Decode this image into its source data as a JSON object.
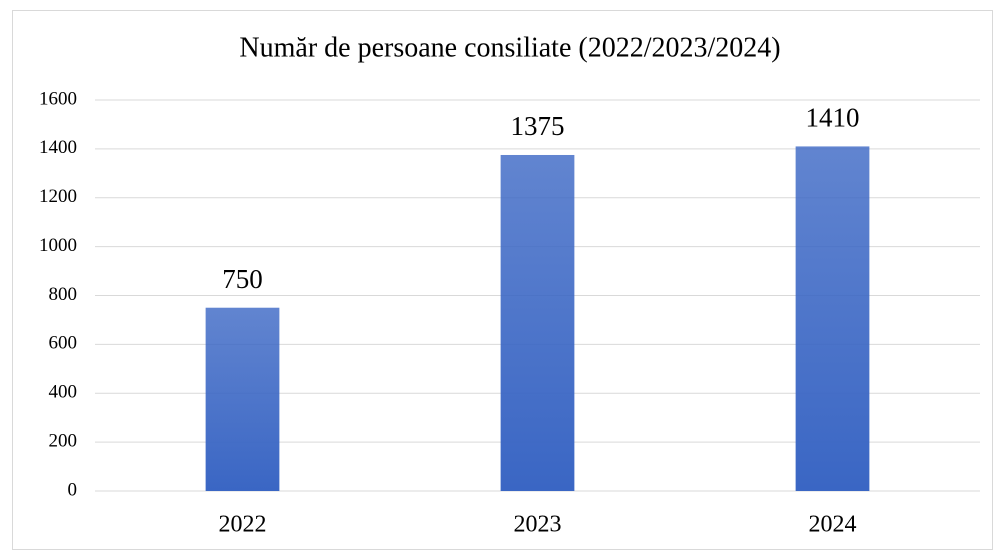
{
  "chart_data": {
    "type": "bar",
    "title": "Număr de persoane consiliate (2022/2023/2024)",
    "categories": [
      "2022",
      "2023",
      "2024"
    ],
    "values": [
      750,
      1375,
      1410
    ],
    "color": "#3a66c4",
    "ylim": [
      0,
      1600
    ],
    "yticks": [
      0,
      200,
      400,
      600,
      800,
      1000,
      1200,
      1400,
      1600
    ],
    "grid": true,
    "data_labels": true
  }
}
